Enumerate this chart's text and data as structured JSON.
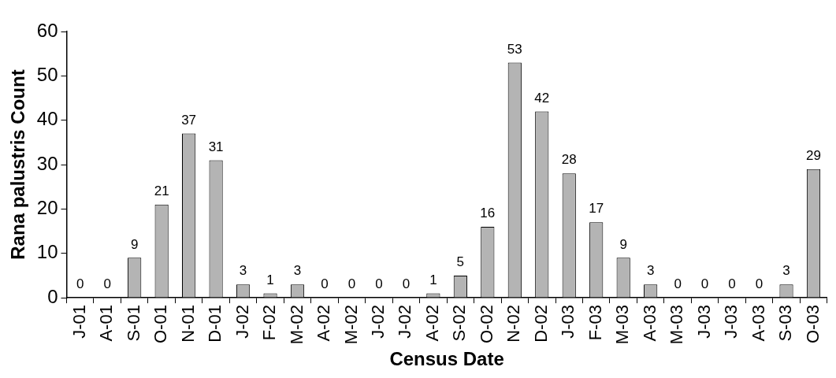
{
  "chart_data": {
    "type": "bar",
    "xlabel": "Census Date",
    "ylabel": "Rana palustris Count",
    "categories": [
      "J-01",
      "A-01",
      "S-01",
      "O-01",
      "N-01",
      "D-01",
      "J-02",
      "F-02",
      "M-02",
      "A-02",
      "M-02",
      "J-02",
      "J-02",
      "A-02",
      "S-02",
      "O-02",
      "N-02",
      "D-02",
      "J-03",
      "F-03",
      "M-03",
      "A-03",
      "M-03",
      "J-03",
      "J-03",
      "A-03",
      "S-03",
      "O-03"
    ],
    "values": [
      0,
      0,
      9,
      21,
      37,
      31,
      3,
      1,
      3,
      0,
      0,
      0,
      0,
      1,
      5,
      16,
      53,
      42,
      28,
      17,
      9,
      3,
      0,
      0,
      0,
      0,
      3,
      29
    ],
    "color": "#b4b4b4",
    "ylim": [
      0,
      60
    ],
    "yticks": [
      0,
      10,
      20,
      30,
      40,
      50,
      60
    ],
    "grid": false,
    "legend": false,
    "data_labels": true
  }
}
